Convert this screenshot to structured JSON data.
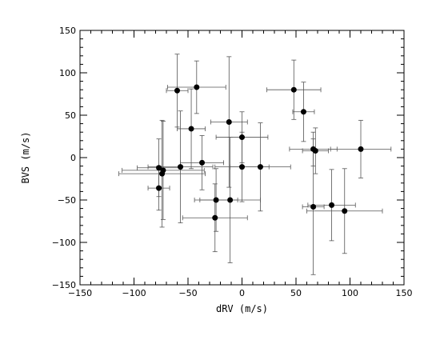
{
  "chart_data": {
    "type": "scatter",
    "title": "",
    "xlabel": "dRV (m/s)",
    "ylabel": "BVS (m/s)",
    "xlim": [
      -150,
      150
    ],
    "ylim": [
      -150,
      150
    ],
    "x_major_ticks": [
      -150,
      -100,
      -50,
      0,
      50,
      100,
      150
    ],
    "x_tick_labels": [
      "−150",
      "−100",
      "−50",
      "0",
      "50",
      "100",
      "150"
    ],
    "y_major_ticks": [
      -150,
      -100,
      -50,
      0,
      50,
      100,
      150
    ],
    "y_tick_labels": [
      "−150",
      "−100",
      "−50",
      "0",
      "50",
      "100",
      "150"
    ],
    "minor_tick_step": 10,
    "grid": false,
    "marker_color": "#000000",
    "errorbar_color": "#555555",
    "points": [
      {
        "x": -60,
        "y": 79,
        "xerr": 10,
        "yerr": 43
      },
      {
        "x": -42,
        "y": 83,
        "xerr": 27,
        "yerr": 31
      },
      {
        "x": -47,
        "y": 34,
        "xerr": 13,
        "yerr": 47
      },
      {
        "x": -12,
        "y": 42,
        "xerr": 17,
        "yerr": 77
      },
      {
        "x": 48,
        "y": 80,
        "xerr": 25,
        "yerr": 35
      },
      {
        "x": 57,
        "y": 54,
        "xerr": 10,
        "yerr": 35
      },
      {
        "x": 0,
        "y": 24,
        "xerr": 24,
        "yerr": 30
      },
      {
        "x": 66,
        "y": 10,
        "xerr": 22,
        "yerr": 20
      },
      {
        "x": 68,
        "y": 8,
        "xerr": 12,
        "yerr": 27
      },
      {
        "x": 110,
        "y": 10,
        "xerr": 28,
        "yerr": 34
      },
      {
        "x": -37,
        "y": -6,
        "xerr": 20,
        "yerr": 32
      },
      {
        "x": -77,
        "y": -12,
        "xerr": 20,
        "yerr": 34
      },
      {
        "x": -73,
        "y": -15,
        "xerr": 38,
        "yerr": 58
      },
      {
        "x": -74,
        "y": -19,
        "xerr": 40,
        "yerr": 63
      },
      {
        "x": -57,
        "y": -11,
        "xerr": 30,
        "yerr": 66
      },
      {
        "x": 0,
        "y": -11,
        "xerr": 25,
        "yerr": 41
      },
      {
        "x": 17,
        "y": -11,
        "xerr": 28,
        "yerr": 52
      },
      {
        "x": -77,
        "y": -36,
        "xerr": 10,
        "yerr": 26
      },
      {
        "x": -24,
        "y": -50,
        "xerr": 20,
        "yerr": 37
      },
      {
        "x": -11,
        "y": -50,
        "xerr": 28,
        "yerr": 74
      },
      {
        "x": -25,
        "y": -71,
        "xerr": 30,
        "yerr": 40
      },
      {
        "x": 66,
        "y": -58,
        "xerr": 10,
        "yerr": 80
      },
      {
        "x": 83,
        "y": -56,
        "xerr": 22,
        "yerr": 42
      },
      {
        "x": 95,
        "y": -63,
        "xerr": 35,
        "yerr": 50
      }
    ]
  }
}
